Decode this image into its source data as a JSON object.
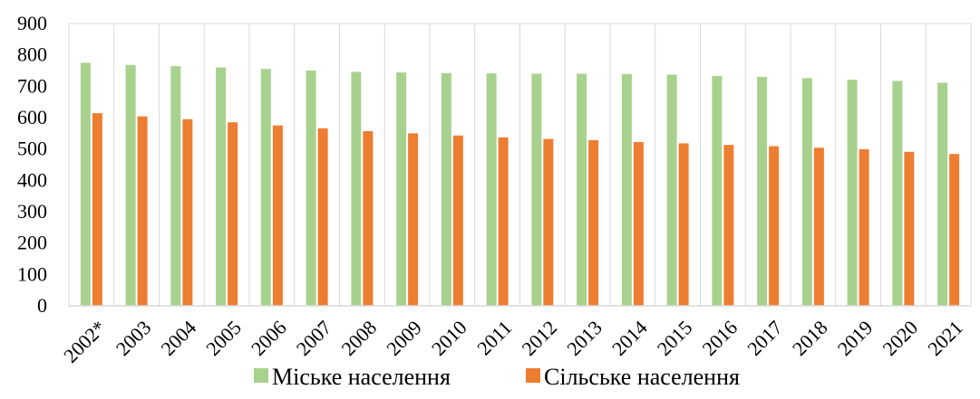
{
  "chart_data": {
    "type": "bar",
    "title": "",
    "xlabel": "",
    "ylabel": "",
    "ylim": [
      0,
      900
    ],
    "yticks": [
      0,
      100,
      200,
      300,
      400,
      500,
      600,
      700,
      800,
      900
    ],
    "grid": "vertical",
    "legend": "bottom",
    "categories": [
      "2002*",
      "2003",
      "2004",
      "2005",
      "2006",
      "2007",
      "2008",
      "2009",
      "2010",
      "2011",
      "2012",
      "2013",
      "2014",
      "2015",
      "2016",
      "2017",
      "2018",
      "2019",
      "2020",
      "2021"
    ],
    "series": [
      {
        "name": "Міське населення",
        "color": "#a9d18e",
        "values": [
          775,
          768,
          764,
          760,
          755,
          750,
          746,
          744,
          742,
          741,
          740,
          740,
          739,
          737,
          733,
          730,
          726,
          721,
          717,
          711
        ]
      },
      {
        "name": "Сільське населення",
        "color": "#ed7d31",
        "values": [
          614,
          604,
          595,
          585,
          575,
          566,
          557,
          550,
          543,
          537,
          532,
          528,
          522,
          518,
          513,
          509,
          504,
          499,
          491,
          484
        ]
      }
    ]
  }
}
